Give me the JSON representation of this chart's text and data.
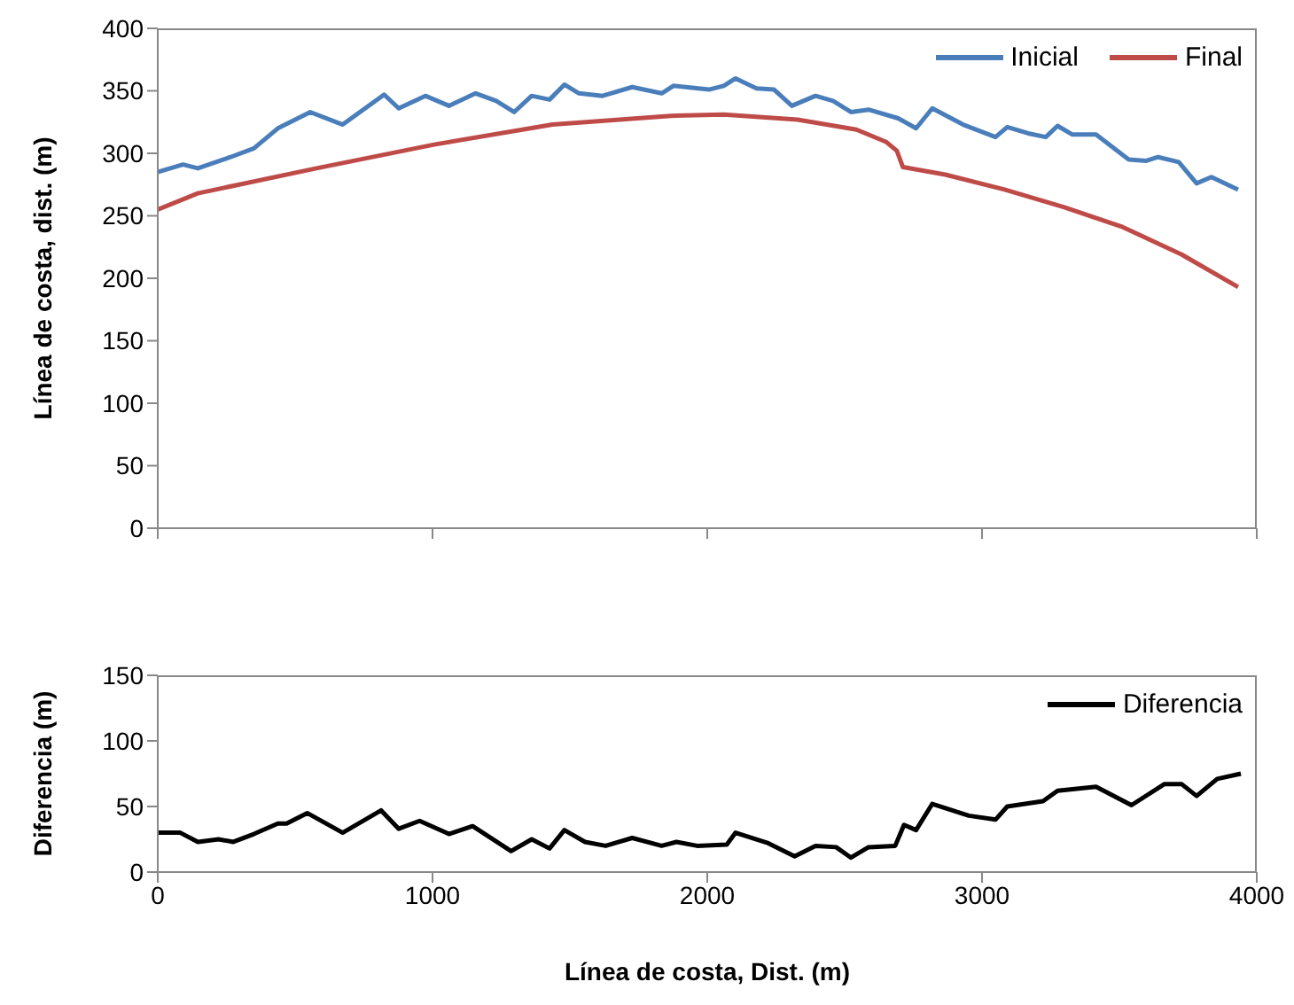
{
  "chart_data": [
    {
      "type": "line",
      "ylabel": "Línea de costa, dist. (m)",
      "xlim": [
        0,
        4000
      ],
      "xticks": [
        0,
        1000,
        2000,
        3000,
        4000
      ],
      "ylim": [
        0,
        400
      ],
      "yticks": [
        0,
        50,
        100,
        150,
        200,
        250,
        300,
        350,
        400
      ],
      "tick_labels": "y",
      "legend": "top right",
      "series": [
        {
          "name": "Inicial",
          "color": "#4a7ebb",
          "x": [
            0,
            92,
            146,
            265,
            350,
            437,
            555,
            673,
            824,
            877,
            974,
            1060,
            1157,
            1232,
            1297,
            1361,
            1426,
            1480,
            1533,
            1619,
            1727,
            1834,
            1877,
            2006,
            2060,
            2103,
            2179,
            2243,
            2308,
            2394,
            2458,
            2523,
            2587,
            2695,
            2760,
            2819,
            2931,
            3049,
            3092,
            3168,
            3232,
            3275,
            3329,
            3415,
            3534,
            3598,
            3641,
            3716,
            3781,
            3835,
            3932
          ],
          "values": [
            285,
            291,
            288,
            297,
            304,
            320,
            333,
            323,
            347,
            336,
            346,
            338,
            348,
            342,
            333,
            346,
            343,
            355,
            348,
            346,
            353,
            348,
            354,
            351,
            354,
            360,
            352,
            351,
            338,
            346,
            342,
            333,
            335,
            328,
            320,
            336,
            323,
            313,
            321,
            316,
            313,
            322,
            315,
            315,
            295,
            294,
            297,
            293,
            276,
            281,
            271
          ]
        },
        {
          "name": "Final",
          "color": "#be4b48",
          "x": [
            0,
            146,
            578,
            1006,
            1437,
            1867,
            2060,
            2329,
            2543,
            2652,
            2690,
            2712,
            2866,
            3082,
            3297,
            3512,
            3727,
            3932
          ],
          "values": [
            255,
            268,
            288,
            307,
            323,
            330,
            331,
            327,
            319,
            309,
            302,
            289,
            283,
            271,
            257,
            241,
            219,
            193
          ]
        }
      ]
    },
    {
      "type": "line",
      "ylabel": "Diferencia (m)",
      "xlabel": "Línea de costa, Dist. (m)",
      "xlim": [
        0,
        4000
      ],
      "xticks": [
        0,
        1000,
        2000,
        3000,
        4000
      ],
      "ylim": [
        0,
        150
      ],
      "yticks": [
        0,
        50,
        100,
        150
      ],
      "legend": "top right",
      "series": [
        {
          "name": "Diferencia",
          "color": "#000000",
          "x": [
            0,
            82,
            146,
            221,
            275,
            350,
            437,
            469,
            544,
            673,
            813,
            877,
            953,
            1060,
            1146,
            1286,
            1361,
            1426,
            1480,
            1555,
            1630,
            1727,
            1834,
            1888,
            1963,
            2071,
            2103,
            2222,
            2318,
            2394,
            2469,
            2523,
            2587,
            2684,
            2716,
            2760,
            2819,
            2952,
            3049,
            3092,
            3222,
            3275,
            3415,
            3544,
            3663,
            3727,
            3781,
            3856,
            3942
          ],
          "values": [
            30,
            30,
            23,
            25,
            23,
            29,
            37,
            37,
            45,
            30,
            47,
            33,
            39,
            29,
            35,
            16,
            25,
            18,
            32,
            23,
            20,
            26,
            20,
            23,
            20,
            21,
            30,
            22,
            12,
            20,
            19,
            11,
            19,
            20,
            36,
            32,
            52,
            43,
            40,
            50,
            54,
            62,
            65,
            51,
            67,
            67,
            58,
            71,
            75
          ]
        }
      ]
    }
  ]
}
